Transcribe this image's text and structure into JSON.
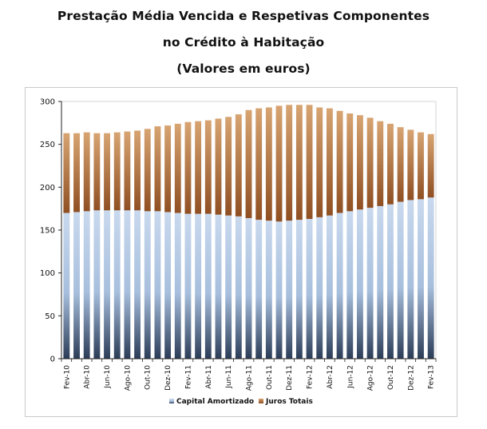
{
  "chart_data": {
    "type": "bar",
    "stacked": true,
    "title": "Prestação Média Vencida e Respetivas Componentes",
    "title_line2": "no Crédito à Habitação",
    "subtitle": "(Valores em euros)",
    "xlabel": "",
    "ylabel": "",
    "ylim": [
      0,
      300
    ],
    "yticks": [
      0,
      50,
      100,
      150,
      200,
      250,
      300
    ],
    "grid": false,
    "legend_position": "bottom",
    "categories": [
      "Fev-10",
      "Mar-10",
      "Abr-10",
      "Mai-10",
      "Jun-10",
      "Jul-10",
      "Ago-10",
      "Set-10",
      "Out-10",
      "Nov-10",
      "Dez-10",
      "Jan-11",
      "Fev-11",
      "Mar-11",
      "Abr-11",
      "Mai-11",
      "Jun-11",
      "Jul-11",
      "Ago-11",
      "Set-11",
      "Out-11",
      "Nov-11",
      "Dez-11",
      "Jan-12",
      "Fev-12",
      "Mar-12",
      "Abr-12",
      "Mai-12",
      "Jun-12",
      "Jul-12",
      "Ago-12",
      "Set-12",
      "Out-12",
      "Nov-12",
      "Dez-12",
      "Jan-13",
      "Fev-13"
    ],
    "tick_labels": [
      "Fev-10",
      "Abr-10",
      "Jun-10",
      "Ago-10",
      "Out-10",
      "Dez-10",
      "Fev-11",
      "Abr-11",
      "Jun-11",
      "Ago-11",
      "Out-11",
      "Dez-11",
      "Fev-12",
      "Abr-12",
      "Jun-12",
      "Ago-12",
      "Out-12",
      "Dez-12",
      "Fev-13"
    ],
    "series": [
      {
        "name": "Capital Amortizado",
        "color": "#b8cde8",
        "values": [
          170,
          171,
          172,
          173,
          173,
          173,
          173,
          173,
          172,
          172,
          171,
          170,
          169,
          169,
          169,
          168,
          167,
          166,
          164,
          162,
          161,
          160,
          161,
          162,
          163,
          165,
          167,
          170,
          172,
          174,
          176,
          178,
          180,
          183,
          185,
          186,
          188
        ]
      },
      {
        "name": "Juros Totais",
        "color": "#b5703a",
        "values": [
          93,
          92,
          92,
          90,
          90,
          91,
          92,
          93,
          96,
          99,
          101,
          104,
          107,
          108,
          109,
          112,
          115,
          119,
          126,
          130,
          132,
          135,
          135,
          134,
          133,
          128,
          125,
          119,
          114,
          110,
          105,
          99,
          94,
          87,
          82,
          78,
          74
        ]
      }
    ]
  }
}
